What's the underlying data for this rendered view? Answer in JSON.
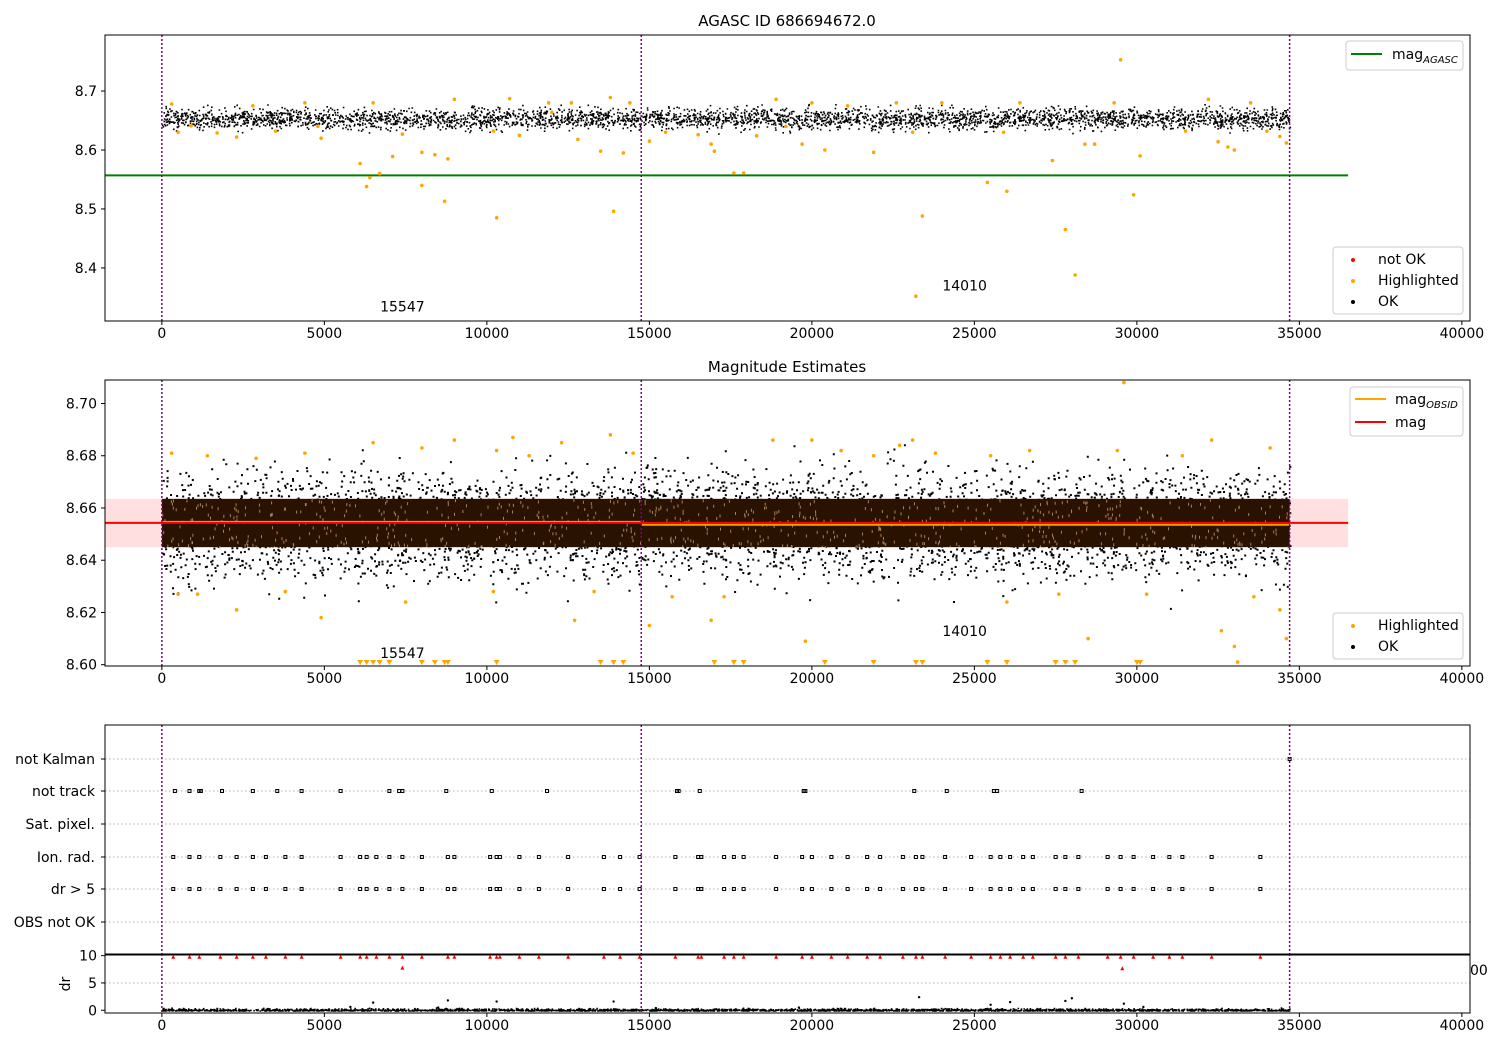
{
  "chart_data": [
    {
      "type": "scatter",
      "title": "AGASC ID 686694672.0",
      "xlim": [
        -1750,
        40250
      ],
      "ylim": [
        8.31,
        8.795
      ],
      "xticks": [
        0,
        5000,
        10000,
        15000,
        20000,
        25000,
        30000,
        35000,
        40000
      ],
      "yticks": [
        8.4,
        8.5,
        8.6,
        8.7
      ],
      "ytick_labels": [
        "8.4",
        "8.5",
        "8.6",
        "8.7"
      ],
      "obs_boundaries": [
        0,
        14750,
        34700
      ],
      "obs_labels": [
        {
          "text": "15547",
          "x": 7400,
          "y": 8.326
        },
        {
          "text": "14010",
          "x": 24700,
          "y": 8.362
        }
      ],
      "ok_band": {
        "x_range": [
          0,
          34700
        ],
        "center": 8.654,
        "half_width": 0.015
      },
      "lines": [
        {
          "name": "mag_AGASC",
          "color": "#008000",
          "x": [
            -1750,
            36500
          ],
          "y": [
            8.557,
            8.557
          ]
        }
      ],
      "highlighted_color": "#ffa500",
      "not_ok_color": "#ff0000",
      "highlighted": [
        [
          300,
          8.678
        ],
        [
          500,
          8.63
        ],
        [
          900,
          8.641
        ],
        [
          1700,
          8.629
        ],
        [
          2300,
          8.622
        ],
        [
          2800,
          8.675
        ],
        [
          3500,
          8.632
        ],
        [
          4400,
          8.68
        ],
        [
          4800,
          8.64
        ],
        [
          4900,
          8.62
        ],
        [
          6100,
          8.577
        ],
        [
          6300,
          8.538
        ],
        [
          6400,
          8.553
        ],
        [
          6500,
          8.68
        ],
        [
          6700,
          8.56
        ],
        [
          7100,
          8.589
        ],
        [
          7400,
          8.627
        ],
        [
          8000,
          8.596
        ],
        [
          8000,
          8.54
        ],
        [
          8400,
          8.592
        ],
        [
          8700,
          8.513
        ],
        [
          8800,
          8.585
        ],
        [
          9000,
          8.686
        ],
        [
          10200,
          8.632
        ],
        [
          10300,
          8.485
        ],
        [
          10700,
          8.687
        ],
        [
          11000,
          8.625
        ],
        [
          11900,
          8.68
        ],
        [
          12000,
          8.664
        ],
        [
          12600,
          8.68
        ],
        [
          12800,
          8.618
        ],
        [
          13500,
          8.598
        ],
        [
          13800,
          8.689
        ],
        [
          13900,
          8.496
        ],
        [
          14200,
          8.595
        ],
        [
          14400,
          8.68
        ],
        [
          15000,
          8.615
        ],
        [
          15500,
          8.63
        ],
        [
          16500,
          8.626
        ],
        [
          16900,
          8.61
        ],
        [
          17000,
          8.598
        ],
        [
          17600,
          8.561
        ],
        [
          17900,
          8.561
        ],
        [
          18300,
          8.624
        ],
        [
          18900,
          8.686
        ],
        [
          19200,
          8.64
        ],
        [
          19700,
          8.61
        ],
        [
          20000,
          8.68
        ],
        [
          20400,
          8.6
        ],
        [
          21100,
          8.675
        ],
        [
          21900,
          8.596
        ],
        [
          22600,
          8.68
        ],
        [
          23100,
          8.63
        ],
        [
          23200,
          8.352
        ],
        [
          23400,
          8.488
        ],
        [
          24000,
          8.68
        ],
        [
          25400,
          8.545
        ],
        [
          25900,
          8.63
        ],
        [
          26000,
          8.53
        ],
        [
          26400,
          8.68
        ],
        [
          27400,
          8.582
        ],
        [
          27800,
          8.465
        ],
        [
          28100,
          8.388
        ],
        [
          28400,
          8.61
        ],
        [
          28700,
          8.61
        ],
        [
          29300,
          8.68
        ],
        [
          29500,
          8.753
        ],
        [
          29900,
          8.524
        ],
        [
          30100,
          8.59
        ],
        [
          31500,
          8.632
        ],
        [
          32200,
          8.686
        ],
        [
          32500,
          8.614
        ],
        [
          32800,
          8.605
        ],
        [
          33000,
          8.6
        ],
        [
          33500,
          8.68
        ],
        [
          34000,
          8.632
        ],
        [
          34400,
          8.623
        ],
        [
          34600,
          8.612
        ]
      ],
      "not_ok": [],
      "legends": [
        {
          "position": "top-right",
          "entries": [
            {
              "marker": "line",
              "color": "#008000",
              "label": "mag",
              "sub": "AGASC"
            }
          ]
        },
        {
          "position": "bottom-right",
          "entries": [
            {
              "marker": "dot",
              "color": "#ff0000",
              "label": "not OK"
            },
            {
              "marker": "dot",
              "color": "#ffa500",
              "label": "Highlighted"
            },
            {
              "marker": "dot",
              "color": "#000000",
              "label": "OK"
            }
          ]
        }
      ]
    },
    {
      "type": "scatter",
      "title": "Magnitude Estimates",
      "xlim": [
        -1750,
        40250
      ],
      "ylim": [
        8.5995,
        8.709
      ],
      "xticks": [
        0,
        5000,
        10000,
        15000,
        20000,
        25000,
        30000,
        35000,
        40000
      ],
      "yticks": [
        8.6,
        8.62,
        8.64,
        8.66,
        8.68,
        8.7
      ],
      "ytick_labels": [
        "8.60",
        "8.62",
        "8.64",
        "8.66",
        "8.68",
        "8.70"
      ],
      "obs_boundaries": [
        0,
        14750,
        34700
      ],
      "obs_labels": [
        {
          "text": "15547",
          "x": 7400,
          "y": 8.6025
        },
        {
          "text": "14010",
          "x": 24700,
          "y": 8.6109
        }
      ],
      "ok_band": {
        "x_range": [
          0,
          34700
        ],
        "center": 8.654,
        "half_width": 0.015
      },
      "error_band": {
        "x_range": [
          -1750,
          36500
        ],
        "y_range": [
          8.645,
          8.6635
        ],
        "color": "#ffc0c0"
      },
      "lines": [
        {
          "name": "mag_OBSID_1",
          "color": "#ffa500",
          "x": [
            0,
            14750
          ],
          "y": [
            8.6547,
            8.6547
          ]
        },
        {
          "name": "mag_OBSID_2",
          "color": "#ffa500",
          "x": [
            14750,
            34700
          ],
          "y": [
            8.6536,
            8.6536
          ]
        },
        {
          "name": "mag",
          "color": "#ff0000",
          "x": [
            -1750,
            36500
          ],
          "y": [
            8.6543,
            8.6543
          ]
        }
      ],
      "highlighted_color": "#ffa500",
      "highlighted": [
        [
          300,
          8.681
        ],
        [
          500,
          8.627
        ],
        [
          1100,
          8.627
        ],
        [
          1400,
          8.68
        ],
        [
          2300,
          8.621
        ],
        [
          2900,
          8.679
        ],
        [
          3800,
          8.628
        ],
        [
          4400,
          8.681
        ],
        [
          4900,
          8.618
        ],
        [
          6500,
          8.685
        ],
        [
          7500,
          8.624
        ],
        [
          8000,
          8.683
        ],
        [
          9000,
          8.686
        ],
        [
          10200,
          8.628
        ],
        [
          10300,
          8.682
        ],
        [
          10800,
          8.687
        ],
        [
          11300,
          8.68
        ],
        [
          12300,
          8.685
        ],
        [
          12700,
          8.617
        ],
        [
          13300,
          8.628
        ],
        [
          13800,
          8.688
        ],
        [
          14500,
          8.681
        ],
        [
          15000,
          8.615
        ],
        [
          15700,
          8.626
        ],
        [
          16900,
          8.617
        ],
        [
          17300,
          8.626
        ],
        [
          18800,
          8.686
        ],
        [
          19800,
          8.609
        ],
        [
          20000,
          8.686
        ],
        [
          20900,
          8.682
        ],
        [
          21900,
          8.68
        ],
        [
          22700,
          8.684
        ],
        [
          23100,
          8.686
        ],
        [
          23800,
          8.681
        ],
        [
          25500,
          8.68
        ],
        [
          26000,
          8.624
        ],
        [
          26700,
          8.682
        ],
        [
          27600,
          8.627
        ],
        [
          28500,
          8.61
        ],
        [
          29400,
          8.682
        ],
        [
          29600,
          8.708
        ],
        [
          30300,
          8.627
        ],
        [
          31400,
          8.68
        ],
        [
          32300,
          8.686
        ],
        [
          32600,
          8.613
        ],
        [
          33000,
          8.607
        ],
        [
          33100,
          8.601
        ],
        [
          33600,
          8.626
        ],
        [
          34100,
          8.683
        ],
        [
          34400,
          8.621
        ],
        [
          34600,
          8.61
        ]
      ],
      "below_range_markers": [
        6100,
        6300,
        6500,
        6700,
        7000,
        8000,
        8400,
        8700,
        8800,
        10300,
        13500,
        13900,
        14200,
        17000,
        17600,
        17900,
        20400,
        21900,
        23200,
        23400,
        25400,
        26000,
        27500,
        27800,
        28100,
        30000,
        30100
      ],
      "legends": [
        {
          "position": "top-right",
          "entries": [
            {
              "marker": "line",
              "color": "#ffa500",
              "label": "mag",
              "sub": "OBSID"
            },
            {
              "marker": "line",
              "color": "#ff0000",
              "label": "mag"
            }
          ]
        },
        {
          "position": "bottom-right",
          "entries": [
            {
              "marker": "dot",
              "color": "#ffa500",
              "label": "Highlighted"
            },
            {
              "marker": "dot",
              "color": "#000000",
              "label": "OK"
            }
          ]
        }
      ]
    },
    {
      "type": "scatter",
      "title": "",
      "xlim": [
        -1750,
        40250
      ],
      "categories": [
        "not Kalman",
        "not track",
        "Sat. pixel.",
        "Ion. rad.",
        "dr > 5",
        "OBS not OK"
      ],
      "obs_boundaries": [
        0,
        14750,
        34700
      ],
      "flag_events": {
        "not Kalman": [
          34700
        ],
        "not track": [
          400,
          850,
          1150,
          1200,
          1850,
          2800,
          3550,
          4300,
          5500,
          7000,
          7300,
          7400,
          8750,
          10150,
          11850,
          15850,
          15900,
          16550,
          19750,
          19800,
          23150,
          24150,
          25600,
          25700,
          28300
        ],
        "Sat. pixel.": [],
        "Ion. rad.": [
          350,
          850,
          1150,
          1800,
          2300,
          2800,
          3200,
          3800,
          4300,
          5500,
          6100,
          6300,
          6600,
          7000,
          7400,
          8000,
          8800,
          9000,
          10100,
          10300,
          10400,
          11000,
          11600,
          12500,
          13600,
          14100,
          14700,
          15800,
          16500,
          16600,
          17300,
          17600,
          17900,
          18900,
          19700,
          20000,
          20600,
          21100,
          21700,
          22100,
          22800,
          23200,
          23400,
          24100,
          24900,
          25500,
          25800,
          26100,
          26500,
          26800,
          27500,
          27800,
          28200,
          29100,
          29500,
          29900,
          30500,
          31000,
          31400,
          32300,
          33800
        ],
        "dr > 5": [
          350,
          850,
          1150,
          1800,
          2300,
          2800,
          3200,
          3800,
          4300,
          5500,
          6100,
          6300,
          6600,
          7000,
          7400,
          8000,
          8800,
          9000,
          10100,
          10300,
          10400,
          11000,
          11600,
          12500,
          13600,
          14100,
          14700,
          15800,
          16500,
          16600,
          17300,
          17600,
          17900,
          18900,
          19700,
          20000,
          20600,
          21100,
          21700,
          22100,
          22800,
          23200,
          23400,
          24100,
          24900,
          25500,
          25800,
          26100,
          26500,
          26800,
          27500,
          27800,
          28200,
          29100,
          29500,
          29900,
          30500,
          31000,
          31400,
          32300,
          33800
        ],
        "OBS not OK": []
      }
    },
    {
      "type": "scatter",
      "title": "",
      "xlim": [
        -1750,
        40250
      ],
      "ylim": [
        -0.5,
        10.3
      ],
      "ylabel": "dr",
      "yticks": [
        0,
        5,
        10
      ],
      "xticks": [
        0,
        5000,
        10000,
        15000,
        20000,
        25000,
        30000,
        35000,
        40000
      ],
      "obs_boundaries": [
        0,
        14750,
        34700
      ],
      "edge_text": "00",
      "high_dr_points": [
        [
          350,
          9.8
        ],
        [
          850,
          9.8
        ],
        [
          1150,
          9.8
        ],
        [
          1800,
          9.8
        ],
        [
          2300,
          9.8
        ],
        [
          2800,
          9.8
        ],
        [
          3200,
          9.8
        ],
        [
          3800,
          9.8
        ],
        [
          4300,
          9.8
        ],
        [
          5500,
          9.8
        ],
        [
          6100,
          9.8
        ],
        [
          6300,
          9.8
        ],
        [
          6600,
          9.8
        ],
        [
          7000,
          9.8
        ],
        [
          7400,
          9.8
        ],
        [
          8000,
          9.8
        ],
        [
          8800,
          9.8
        ],
        [
          9000,
          9.8
        ],
        [
          10100,
          9.8
        ],
        [
          10300,
          9.8
        ],
        [
          10400,
          9.8
        ],
        [
          11000,
          9.8
        ],
        [
          11600,
          9.8
        ],
        [
          12500,
          9.8
        ],
        [
          13600,
          9.8
        ],
        [
          14100,
          9.8
        ],
        [
          14700,
          9.8
        ],
        [
          15800,
          9.8
        ],
        [
          16500,
          9.8
        ],
        [
          16600,
          9.8
        ],
        [
          17300,
          9.8
        ],
        [
          17600,
          9.8
        ],
        [
          17900,
          9.8
        ],
        [
          18900,
          9.8
        ],
        [
          19700,
          9.8
        ],
        [
          20000,
          9.8
        ],
        [
          20600,
          9.8
        ],
        [
          21100,
          9.8
        ],
        [
          21700,
          9.8
        ],
        [
          22100,
          9.8
        ],
        [
          22800,
          9.8
        ],
        [
          23200,
          9.8
        ],
        [
          23400,
          9.8
        ],
        [
          24100,
          9.8
        ],
        [
          24900,
          9.8
        ],
        [
          25500,
          9.8
        ],
        [
          25800,
          9.8
        ],
        [
          26100,
          9.8
        ],
        [
          26500,
          9.8
        ],
        [
          26800,
          9.8
        ],
        [
          27500,
          9.8
        ],
        [
          27800,
          9.8
        ],
        [
          28200,
          9.8
        ],
        [
          29100,
          9.8
        ],
        [
          29500,
          9.8
        ],
        [
          29900,
          9.8
        ],
        [
          30500,
          9.8
        ],
        [
          31000,
          9.8
        ],
        [
          31400,
          9.8
        ],
        [
          32300,
          9.8
        ],
        [
          33800,
          9.8
        ],
        [
          7400,
          7.8
        ],
        [
          29550,
          7.7
        ]
      ],
      "scattered_low_points": [
        [
          5800,
          0.6
        ],
        [
          6500,
          1.4
        ],
        [
          8500,
          0.5
        ],
        [
          8800,
          1.8
        ],
        [
          10300,
          1.6
        ],
        [
          13900,
          1.6
        ],
        [
          15200,
          0.4
        ],
        [
          19600,
          0.5
        ],
        [
          23300,
          2.4
        ],
        [
          25500,
          1.0
        ],
        [
          26100,
          1.5
        ],
        [
          27800,
          1.7
        ],
        [
          28000,
          2.2
        ],
        [
          29600,
          1.2
        ],
        [
          30200,
          0.6
        ]
      ]
    }
  ]
}
